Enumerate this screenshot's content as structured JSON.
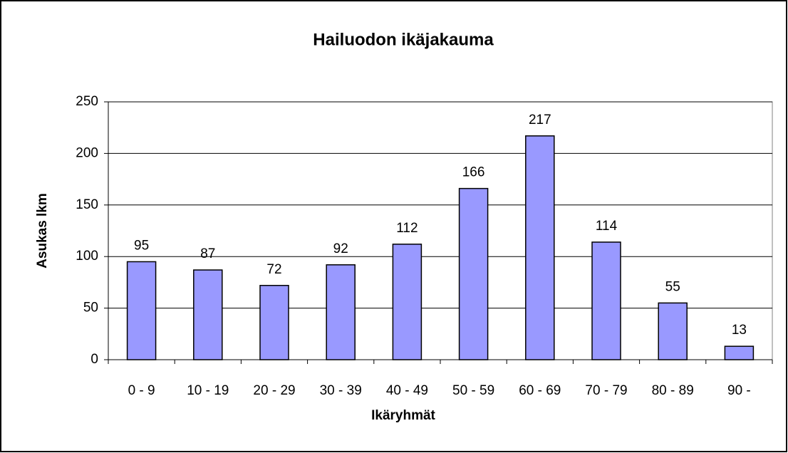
{
  "chart_data": {
    "type": "bar",
    "title": "Hailuodon ikäjakauma",
    "x_label": "Ikäryhmät",
    "y_label": "Asukas lkm",
    "categories": [
      "0 - 9",
      "10 - 19",
      "20 - 29",
      "30 - 39",
      "40 - 49",
      "50 - 59",
      "60 - 69",
      "70 - 79",
      "80 - 89",
      "90 -"
    ],
    "values": [
      95,
      87,
      72,
      92,
      112,
      166,
      217,
      114,
      55,
      13
    ],
    "color": "#9999ff",
    "ylim": [
      0,
      250
    ],
    "yticks": [
      0,
      50,
      100,
      150,
      200,
      250
    ],
    "grid": true
  }
}
